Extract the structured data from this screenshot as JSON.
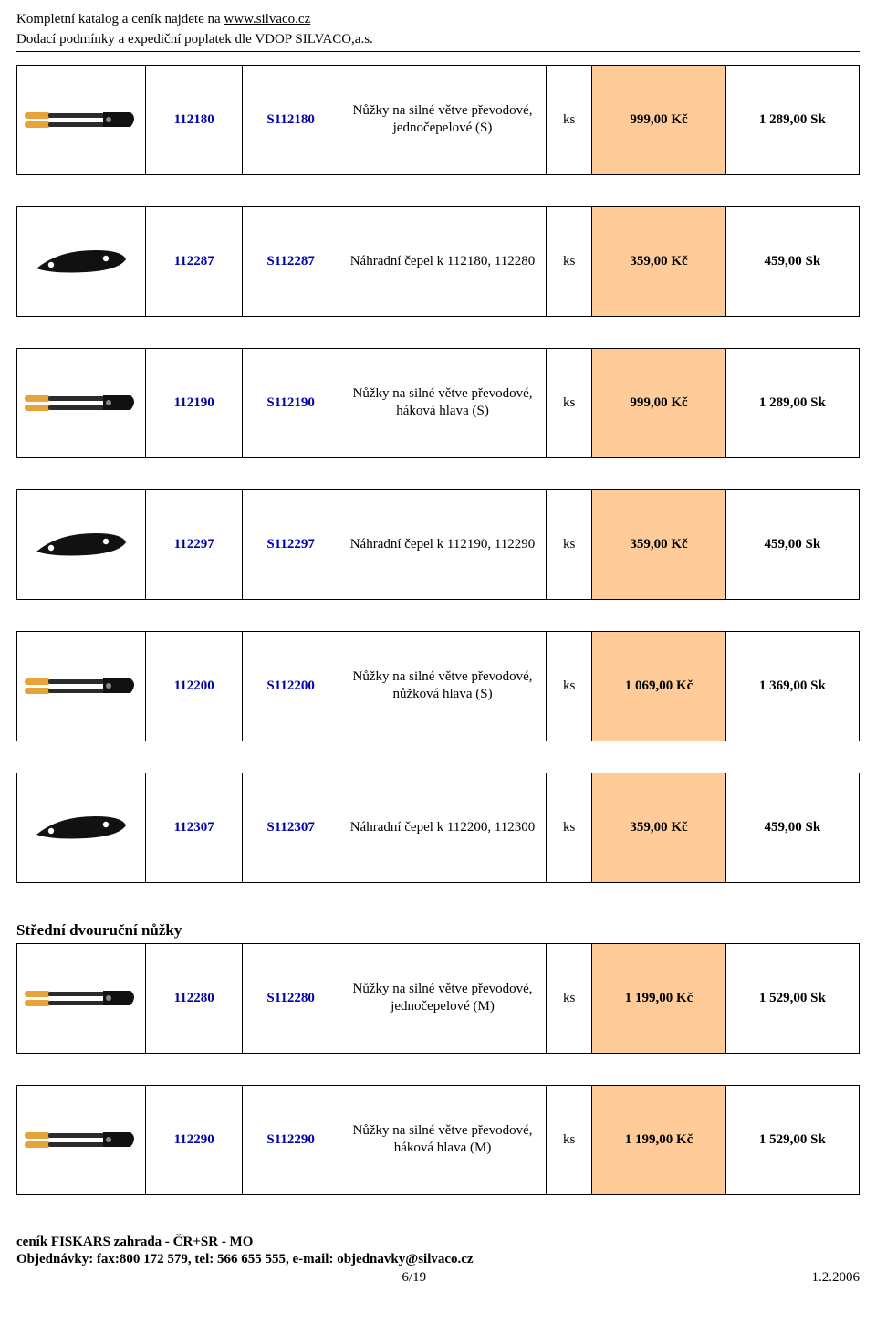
{
  "header": {
    "line1_prefix": "Kompletní katalog a ceník najdete na",
    "line1_link": " www.silvaco.cz",
    "line2": "Dodací podmínky a expediční poplatek dle VDOP SILVACO,a.s."
  },
  "colors": {
    "price_bg": "#ffcc99",
    "link_blue": "#0000aa",
    "border": "#000000",
    "handle_orange": "#e8a23a",
    "handle_dark": "#2b2b2b",
    "blade_black": "#111111"
  },
  "rows": [
    {
      "icon": "lopper",
      "code1": "112180",
      "code2": "S112180",
      "desc": "Nůžky na silné větve převodové, jednočepelové (S)",
      "unit": "ks",
      "kc": "999,00 Kč",
      "sk": "1 289,00 Sk"
    },
    {
      "icon": "blade",
      "code1": "112287",
      "code2": "S112287",
      "desc": "Náhradní čepel k 112180, 112280",
      "unit": "ks",
      "kc": "359,00 Kč",
      "sk": "459,00 Sk"
    },
    {
      "icon": "lopper",
      "code1": "112190",
      "code2": "S112190",
      "desc": "Nůžky na silné větve převodové, háková hlava  (S)",
      "unit": "ks",
      "kc": "999,00 Kč",
      "sk": "1 289,00 Sk"
    },
    {
      "icon": "blade",
      "code1": "112297",
      "code2": "S112297",
      "desc": "Náhradní čepel k 112190, 112290",
      "unit": "ks",
      "kc": "359,00 Kč",
      "sk": "459,00 Sk"
    },
    {
      "icon": "lopper",
      "code1": "112200",
      "code2": "S112200",
      "desc": "Nůžky na silné větve převodové, nůžková hlava (S)",
      "unit": "ks",
      "kc": "1 069,00 Kč",
      "sk": "1 369,00 Sk"
    },
    {
      "icon": "blade",
      "code1": "112307",
      "code2": "S112307",
      "desc": "Náhradní čepel k 112200, 112300",
      "unit": "ks",
      "kc": "359,00 Kč",
      "sk": "459,00 Sk"
    }
  ],
  "section_title": "Střední dvouruční nůžky",
  "rows2": [
    {
      "icon": "lopper",
      "code1": "112280",
      "code2": "S112280",
      "desc": "Nůžky na silné větve převodové, jednočepelové (M)",
      "unit": "ks",
      "kc": "1 199,00 Kč",
      "sk": "1 529,00 Sk"
    },
    {
      "icon": "lopper",
      "code1": "112290",
      "code2": "S112290",
      "desc": "Nůžky na silné větve převodové, háková hlava (M)",
      "unit": "ks",
      "kc": "1 199,00 Kč",
      "sk": "1 529,00 Sk"
    }
  ],
  "footer": {
    "line1": "ceník FISKARS zahrada - ČR+SR - MO",
    "line2": "Objednávky: fax:800 172 579, tel: 566 655 555, e-mail: objednavky@silvaco.cz",
    "page": "6/19",
    "date": "1.2.2006"
  }
}
